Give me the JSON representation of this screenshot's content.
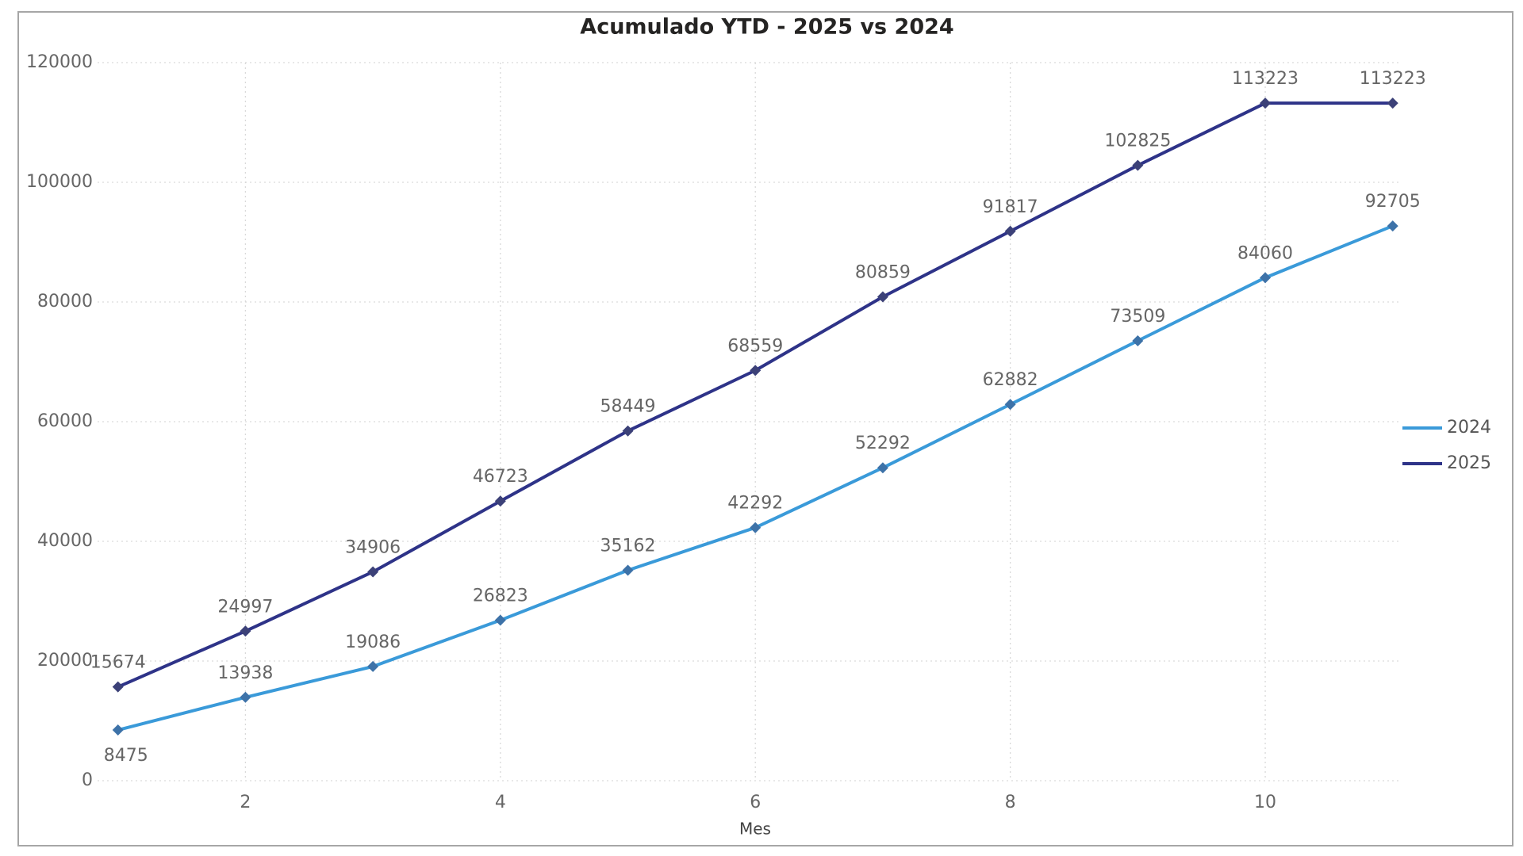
{
  "chart_data": {
    "type": "line",
    "title": "Acumulado YTD - 2025 vs 2024",
    "x_label": "Mes",
    "x": [
      1,
      2,
      3,
      4,
      5,
      6,
      7,
      8,
      9,
      10,
      11
    ],
    "series": [
      {
        "name": "2024",
        "color": "#3a9ad9",
        "marker_color": "#3d72a8",
        "values": [
          8475,
          13938,
          19086,
          26823,
          35162,
          42292,
          52292,
          62882,
          73509,
          84060,
          92705
        ]
      },
      {
        "name": "2025",
        "color": "#2e3388",
        "marker_color": "#3c4178",
        "values": [
          15674,
          24997,
          34906,
          46723,
          58449,
          68559,
          80859,
          91817,
          102825,
          113223,
          113223
        ]
      }
    ],
    "xlim": [
      0.84,
      11.07
    ],
    "xticks": [
      2,
      4,
      6,
      8,
      10
    ],
    "ylim": [
      0,
      120000
    ],
    "yticks": [
      0,
      20000,
      40000,
      60000,
      80000,
      100000,
      120000
    ],
    "grid": true,
    "legend": "right"
  }
}
